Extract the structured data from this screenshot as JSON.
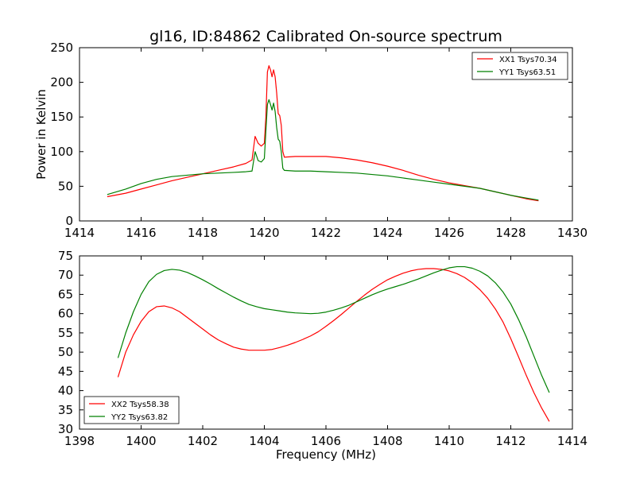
{
  "chart_data": [
    {
      "type": "line",
      "title": "gl16, ID:84862 Calibrated On-source spectrum",
      "xlabel": "",
      "ylabel": "Power in Kelvin",
      "xlim": [
        1414,
        1430
      ],
      "ylim": [
        0,
        250
      ],
      "xticks": [
        "1414",
        "1416",
        "1418",
        "1420",
        "1422",
        "1424",
        "1426",
        "1428",
        "1430"
      ],
      "yticks": [
        "0",
        "50",
        "100",
        "150",
        "200",
        "250"
      ],
      "legend_position": "top-right",
      "grid": false,
      "series": [
        {
          "name": "XX1 Tsys70.34",
          "color": "#ff0000",
          "x": [
            1414.9,
            1415.5,
            1416,
            1416.5,
            1417,
            1417.5,
            1418,
            1418.5,
            1419,
            1419.4,
            1419.6,
            1419.7,
            1419.8,
            1419.9,
            1420.0,
            1420.05,
            1420.1,
            1420.15,
            1420.2,
            1420.25,
            1420.3,
            1420.35,
            1420.4,
            1420.45,
            1420.5,
            1420.55,
            1420.6,
            1420.65,
            1421,
            1421.5,
            1422,
            1422.5,
            1423,
            1423.5,
            1424,
            1424.5,
            1425,
            1425.5,
            1426,
            1426.5,
            1427,
            1427.5,
            1428,
            1428.5,
            1428.9
          ],
          "values": [
            35,
            40,
            46,
            52,
            58,
            63,
            68,
            73,
            78,
            83,
            88,
            122,
            112,
            108,
            112,
            150,
            215,
            224,
            218,
            208,
            218,
            208,
            185,
            155,
            152,
            138,
            100,
            92,
            93,
            93,
            93,
            91,
            88,
            84,
            79,
            73,
            66,
            60,
            55,
            51,
            47,
            42,
            37,
            32,
            29
          ]
        },
        {
          "name": "YY1 Tsys63.51",
          "color": "#008000",
          "x": [
            1414.9,
            1415.5,
            1416,
            1416.5,
            1417,
            1417.5,
            1418,
            1418.5,
            1419,
            1419.4,
            1419.6,
            1419.7,
            1419.8,
            1419.9,
            1420.0,
            1420.05,
            1420.1,
            1420.15,
            1420.2,
            1420.25,
            1420.3,
            1420.35,
            1420.4,
            1420.45,
            1420.5,
            1420.55,
            1420.6,
            1420.65,
            1421,
            1421.5,
            1422,
            1422.5,
            1423,
            1423.5,
            1424,
            1424.5,
            1425,
            1425.5,
            1426,
            1426.5,
            1427,
            1427.5,
            1428,
            1428.5,
            1428.9
          ],
          "values": [
            38,
            46,
            54,
            60,
            64,
            66,
            68,
            69,
            70,
            71,
            72,
            100,
            87,
            85,
            90,
            130,
            168,
            175,
            168,
            160,
            170,
            158,
            135,
            118,
            115,
            100,
            76,
            73,
            72,
            72,
            71,
            70,
            69,
            67,
            65,
            62,
            59,
            56,
            53,
            50,
            47,
            42,
            37,
            33,
            30
          ]
        }
      ]
    },
    {
      "type": "line",
      "title": "",
      "xlabel": "Frequency (MHz)",
      "ylabel": "",
      "xlim": [
        1398,
        1414
      ],
      "ylim": [
        30,
        75
      ],
      "xticks": [
        "1398",
        "1400",
        "1402",
        "1404",
        "1406",
        "1408",
        "1410",
        "1412",
        "1414"
      ],
      "yticks": [
        "30",
        "35",
        "40",
        "45",
        "50",
        "55",
        "60",
        "65",
        "70",
        "75"
      ],
      "legend_position": "bottom-left",
      "grid": false,
      "series": [
        {
          "name": "XX2 Tsys58.38",
          "color": "#ff0000",
          "x": [
            1399.25,
            1399.5,
            1399.75,
            1400,
            1400.25,
            1400.5,
            1400.75,
            1401,
            1401.25,
            1401.5,
            1401.75,
            1402,
            1402.25,
            1402.5,
            1402.75,
            1403,
            1403.25,
            1403.5,
            1403.75,
            1404,
            1404.25,
            1404.5,
            1404.75,
            1405,
            1405.25,
            1405.5,
            1405.75,
            1406,
            1406.25,
            1406.5,
            1406.75,
            1407,
            1407.25,
            1407.5,
            1407.75,
            1408,
            1408.25,
            1408.5,
            1408.75,
            1409,
            1409.25,
            1409.5,
            1409.75,
            1410,
            1410.25,
            1410.5,
            1410.75,
            1411,
            1411.25,
            1411.5,
            1411.75,
            1412,
            1412.25,
            1412.5,
            1412.75,
            1413,
            1413.25
          ],
          "values": [
            43.5,
            50,
            54.5,
            58,
            60.5,
            61.8,
            62,
            61.5,
            60.5,
            59,
            57.5,
            56,
            54.5,
            53.2,
            52.2,
            51.3,
            50.8,
            50.5,
            50.5,
            50.5,
            50.7,
            51.2,
            51.8,
            52.5,
            53.3,
            54.2,
            55.3,
            56.7,
            58.2,
            59.8,
            61.5,
            63.2,
            64.8,
            66.3,
            67.6,
            68.8,
            69.7,
            70.5,
            71.1,
            71.5,
            71.7,
            71.7,
            71.5,
            71.1,
            70.4,
            69.4,
            68,
            66.2,
            64,
            61.2,
            57.8,
            53.5,
            48.8,
            44,
            39.5,
            35.5,
            32
          ]
        },
        {
          "name": "YY2 Tsys63.82",
          "color": "#008000",
          "x": [
            1399.25,
            1399.5,
            1399.75,
            1400,
            1400.25,
            1400.5,
            1400.75,
            1401,
            1401.25,
            1401.5,
            1401.75,
            1402,
            1402.25,
            1402.5,
            1402.75,
            1403,
            1403.25,
            1403.5,
            1403.75,
            1404,
            1404.25,
            1404.5,
            1404.75,
            1405,
            1405.25,
            1405.5,
            1405.75,
            1406,
            1406.25,
            1406.5,
            1406.75,
            1407,
            1407.25,
            1407.5,
            1407.75,
            1408,
            1408.25,
            1408.5,
            1408.75,
            1409,
            1409.25,
            1409.5,
            1409.75,
            1410,
            1410.25,
            1410.5,
            1410.75,
            1411,
            1411.25,
            1411.5,
            1411.75,
            1412,
            1412.25,
            1412.5,
            1412.75,
            1413,
            1413.25
          ],
          "values": [
            48.5,
            55,
            60.5,
            65,
            68.3,
            70.2,
            71.2,
            71.5,
            71.3,
            70.7,
            69.8,
            68.8,
            67.7,
            66.5,
            65.4,
            64.3,
            63.3,
            62.4,
            61.8,
            61.3,
            61,
            60.7,
            60.4,
            60.2,
            60.1,
            60,
            60.1,
            60.4,
            60.9,
            61.5,
            62.2,
            63.1,
            64,
            64.9,
            65.7,
            66.4,
            67,
            67.6,
            68.3,
            69,
            69.8,
            70.6,
            71.3,
            71.9,
            72.2,
            72.2,
            71.8,
            71,
            69.8,
            68,
            65.6,
            62.5,
            58.5,
            54,
            49,
            44,
            39.5
          ]
        }
      ]
    }
  ]
}
